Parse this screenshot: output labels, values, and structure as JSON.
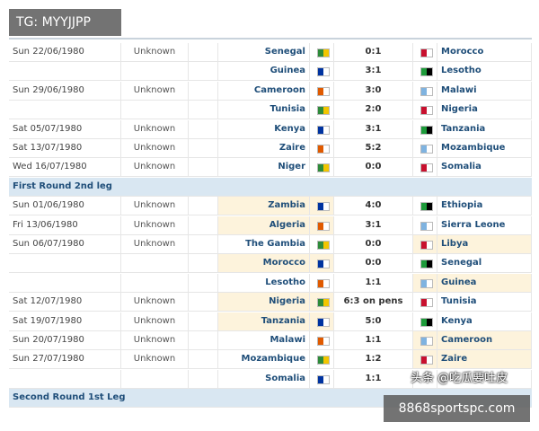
{
  "table": {
    "rows": [
      {
        "date": "Sun 22/06/1980",
        "status": "Unknown",
        "home": "Senegal",
        "score": "0:1",
        "away": "Morocco"
      },
      {
        "home": "Guinea",
        "score": "3:1",
        "away": "Lesotho"
      },
      {
        "date": "Sun 29/06/1980",
        "status": "Unknown",
        "home": "Cameroon",
        "score": "3:0",
        "away": "Malawi"
      },
      {
        "home": "Tunisia",
        "score": "2:0",
        "away": "Nigeria"
      },
      {
        "date": "Sat 05/07/1980",
        "status": "Unknown",
        "home": "Kenya",
        "score": "3:1",
        "away": "Tanzania"
      },
      {
        "date": "Sat 13/07/1980",
        "status": "Unknown",
        "home": "Zaire",
        "score": "5:2",
        "away": "Mozambique"
      },
      {
        "date": "Wed 16/07/1980",
        "status": "Unknown",
        "home": "Niger",
        "score": "0:0",
        "away": "Somalia"
      },
      {
        "section": "First Round 2nd leg"
      },
      {
        "date": "Sun 01/06/1980",
        "status": "Unknown",
        "home": "Zambia",
        "score": "4:0",
        "away": "Ethiopia",
        "highlight": "home"
      },
      {
        "date": "Fri 13/06/1980",
        "status": "Unknown",
        "home": "Algeria",
        "score": "3:1",
        "away": "Sierra Leone",
        "highlight": "home"
      },
      {
        "date": "Sun 06/07/1980",
        "status": "Unknown",
        "home": "The Gambia",
        "score": "0:0",
        "away": "Libya",
        "highlight": "away"
      },
      {
        "home": "Morocco",
        "score": "0:0",
        "away": "Senegal",
        "highlight": "home"
      },
      {
        "home": "Lesotho",
        "score": "1:1",
        "away": "Guinea",
        "highlight": "away"
      },
      {
        "date": "Sat 12/07/1980",
        "status": "Unknown",
        "home": "Nigeria",
        "score": "6:3 on pens",
        "away": "Tunisia",
        "highlight": "home"
      },
      {
        "date": "Sat 19/07/1980",
        "status": "Unknown",
        "home": "Tanzania",
        "score": "5:0",
        "away": "Kenya",
        "highlight": "home"
      },
      {
        "date": "Sun 20/07/1980",
        "status": "Unknown",
        "home": "Malawi",
        "score": "1:1",
        "away": "Cameroon",
        "highlight": "away"
      },
      {
        "date": "Sun 27/07/1980",
        "status": "Unknown",
        "home": "Mozambique",
        "score": "1:2",
        "away": "Zaire",
        "highlight": "away"
      },
      {
        "home": "Somalia",
        "score": "1:1"
      },
      {
        "section": "Second Round 1st Leg"
      }
    ]
  },
  "overlays": {
    "top_left": "TG: MYYJJPP",
    "watermark": "头条 @吃瓜要吐皮",
    "bottom_right": "8868sportspc.com"
  }
}
